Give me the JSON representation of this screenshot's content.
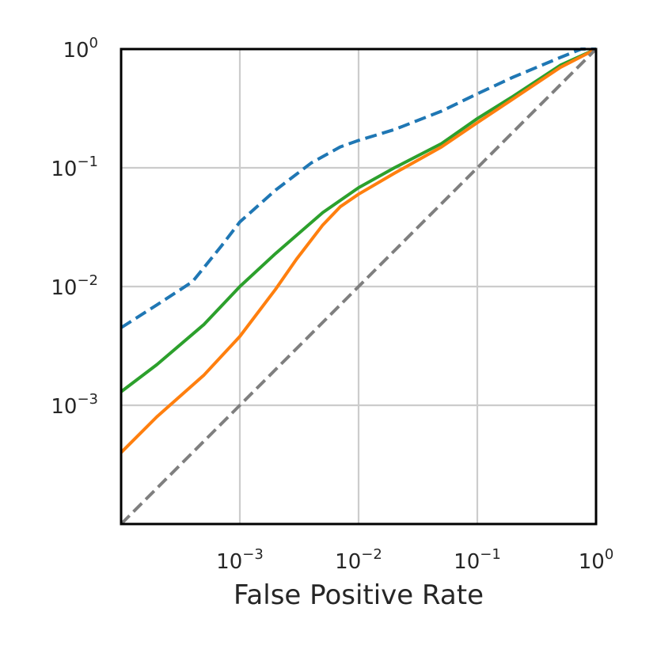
{
  "chart_data": {
    "type": "line",
    "title": "",
    "xlabel": "False Positive Rate",
    "ylabel": "",
    "xscale": "log",
    "yscale": "log",
    "xlim": [
      0.0001,
      1
    ],
    "ylim": [
      0.0001,
      1
    ],
    "grid": true,
    "x_ticks": [
      {
        "value": 0.001,
        "base": "10",
        "exp": "−3"
      },
      {
        "value": 0.01,
        "base": "10",
        "exp": "−2"
      },
      {
        "value": 0.1,
        "base": "10",
        "exp": "−1"
      },
      {
        "value": 1,
        "base": "10",
        "exp": "0"
      }
    ],
    "y_ticks": [
      {
        "value": 0.001,
        "base": "10",
        "exp": "−3"
      },
      {
        "value": 0.01,
        "base": "10",
        "exp": "−2"
      },
      {
        "value": 0.1,
        "base": "10",
        "exp": "−1"
      },
      {
        "value": 1,
        "base": "10",
        "exp": "0"
      }
    ],
    "series": [
      {
        "color": "#1f77b4",
        "style": "dashed",
        "x": [
          0.0001,
          0.0002,
          0.0004,
          0.0007,
          0.001,
          0.002,
          0.004,
          0.007,
          0.01,
          0.02,
          0.05,
          0.1,
          0.2,
          0.5,
          0.75,
          1.0
        ],
        "y": [
          0.0045,
          0.007,
          0.011,
          0.022,
          0.035,
          0.065,
          0.11,
          0.15,
          0.17,
          0.21,
          0.3,
          0.42,
          0.58,
          0.85,
          1.0,
          1.0
        ]
      },
      {
        "color": "#2ca02c",
        "style": "solid",
        "x": [
          0.0001,
          0.0002,
          0.0005,
          0.001,
          0.002,
          0.005,
          0.01,
          0.02,
          0.05,
          0.1,
          0.2,
          0.5,
          1.0
        ],
        "y": [
          0.0013,
          0.0022,
          0.0048,
          0.01,
          0.019,
          0.042,
          0.068,
          0.1,
          0.16,
          0.26,
          0.4,
          0.73,
          1.0
        ]
      },
      {
        "color": "#ff7f0e",
        "style": "solid",
        "x": [
          0.0001,
          0.0002,
          0.0005,
          0.001,
          0.002,
          0.003,
          0.005,
          0.007,
          0.01,
          0.02,
          0.05,
          0.1,
          0.2,
          0.5,
          1.0
        ],
        "y": [
          0.0004,
          0.0008,
          0.0018,
          0.0038,
          0.0095,
          0.017,
          0.033,
          0.047,
          0.06,
          0.09,
          0.15,
          0.24,
          0.38,
          0.7,
          1.0
        ]
      },
      {
        "color": "#7f7f7f",
        "style": "dashed",
        "x": [
          0.0001,
          1.0
        ],
        "y": [
          0.0001,
          1.0
        ]
      }
    ]
  }
}
